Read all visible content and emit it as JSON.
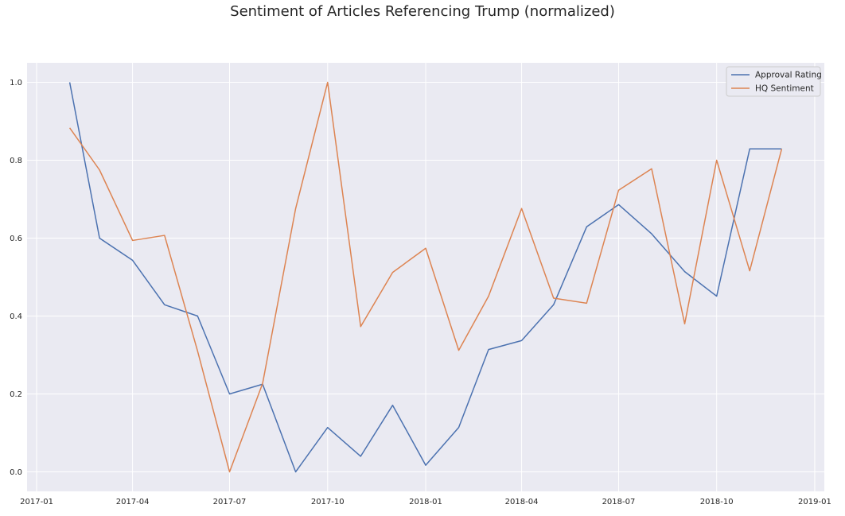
{
  "chart_data": {
    "type": "line",
    "title": "Sentiment of Articles Referencing Trump (normalized)",
    "xlabel": "",
    "ylabel": "",
    "x": [
      "2017-02-01",
      "2017-03-01",
      "2017-04-01",
      "2017-05-01",
      "2017-06-01",
      "2017-07-01",
      "2017-08-01",
      "2017-09-01",
      "2017-10-01",
      "2017-11-01",
      "2017-12-01",
      "2018-01-01",
      "2018-02-01",
      "2018-03-01",
      "2018-04-01",
      "2018-05-01",
      "2018-06-01",
      "2018-07-01",
      "2018-08-01",
      "2018-09-01",
      "2018-10-01",
      "2018-11-01",
      "2018-12-01"
    ],
    "series": [
      {
        "name": "Approval Rating",
        "color": "#4c72b0",
        "values": [
          1.0,
          0.6,
          0.543,
          0.429,
          0.4,
          0.2,
          0.225,
          0.0,
          0.114,
          0.04,
          0.171,
          0.017,
          0.114,
          0.314,
          0.337,
          0.429,
          0.629,
          0.686,
          0.611,
          0.514,
          0.451,
          0.829,
          0.829
        ]
      },
      {
        "name": "HQ Sentiment",
        "color": "#dd8452",
        "values": [
          0.883,
          0.775,
          0.594,
          0.607,
          0.31,
          0.0,
          0.227,
          0.676,
          1.0,
          0.373,
          0.512,
          0.574,
          0.312,
          0.451,
          0.676,
          0.446,
          0.433,
          0.723,
          0.778,
          0.38,
          0.8,
          0.516,
          0.829
        ]
      }
    ],
    "xlim": [
      "2016-12-23",
      "2019-01-10"
    ],
    "ylim": [
      -0.05,
      1.05
    ],
    "xticks": [
      "2017-01",
      "2017-04",
      "2017-07",
      "2017-10",
      "2018-01",
      "2018-04",
      "2018-07",
      "2018-10",
      "2019-01"
    ],
    "yticks": [
      "0.0",
      "0.2",
      "0.4",
      "0.6",
      "0.8",
      "1.0"
    ],
    "grid": true,
    "legend_position": "top-right",
    "background": "#eaeaf2"
  }
}
